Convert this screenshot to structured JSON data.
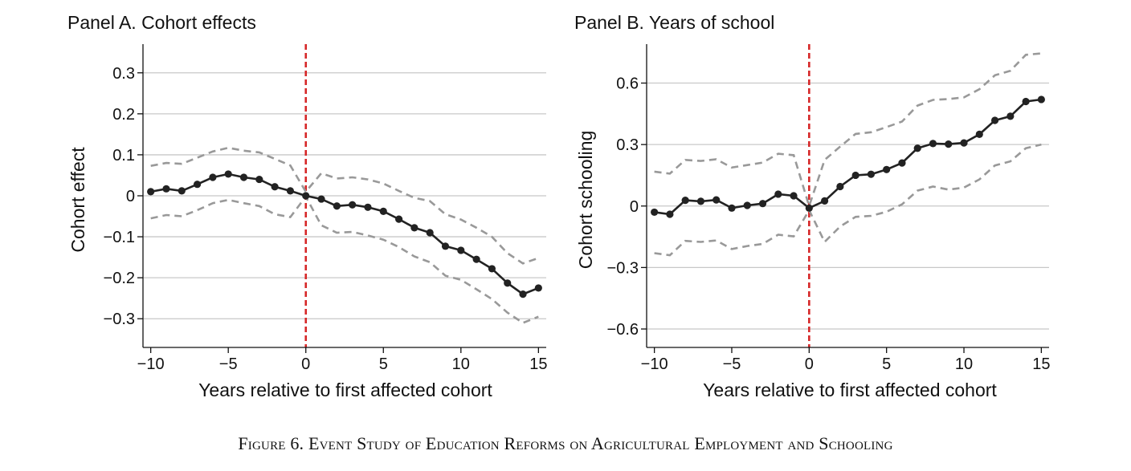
{
  "caption": "Figure 6. Event Study of Education Reforms on Agricultural Employment and Schooling",
  "colors": {
    "estimate": "#222222",
    "ci": "#999999",
    "reference_line": "#d62728",
    "grid": "#c8c8c8"
  },
  "chart_data": [
    {
      "type": "line",
      "title": "Panel A. Cohort effects",
      "xlabel": "Years relative to first affected cohort",
      "ylabel": "Cohort effect",
      "xlim": [
        -10.5,
        15.5
      ],
      "ylim": [
        -0.37,
        0.37
      ],
      "xticks": [
        -10,
        -5,
        0,
        5,
        10,
        15
      ],
      "xtick_labels": [
        "−10",
        "−5",
        "0",
        "5",
        "10",
        "15"
      ],
      "yticks": [
        0.3,
        0.2,
        0.1,
        0,
        -0.1,
        -0.2,
        -0.3
      ],
      "ytick_labels": [
        "0.3",
        "0.2",
        "0.1",
        "0",
        "−0.1",
        "−0.2",
        "−0.3"
      ],
      "grid": "horizontal",
      "reference_x": 0,
      "x": [
        -10,
        -9,
        -8,
        -7,
        -6,
        -5,
        -4,
        -3,
        -2,
        -1,
        0,
        1,
        2,
        3,
        4,
        5,
        6,
        7,
        8,
        9,
        10,
        11,
        12,
        13,
        14,
        15
      ],
      "series": [
        {
          "role": "estimate",
          "values": [
            0.01,
            0.017,
            0.012,
            0.028,
            0.045,
            0.053,
            0.045,
            0.04,
            0.022,
            0.012,
            0,
            -0.008,
            -0.025,
            -0.022,
            -0.028,
            -0.038,
            -0.057,
            -0.078,
            -0.09,
            -0.123,
            -0.133,
            -0.155,
            -0.178,
            -0.213,
            -0.24,
            -0.225
          ]
        },
        {
          "role": "upper_ci",
          "values": [
            0.073,
            0.08,
            0.078,
            0.093,
            0.108,
            0.117,
            0.11,
            0.106,
            0.09,
            0.074,
            0.01,
            0.055,
            0.042,
            0.045,
            0.04,
            0.03,
            0.012,
            -0.005,
            -0.013,
            -0.045,
            -0.058,
            -0.078,
            -0.1,
            -0.14,
            -0.165,
            -0.152
          ]
        },
        {
          "role": "lower_ci",
          "values": [
            -0.055,
            -0.047,
            -0.05,
            -0.035,
            -0.018,
            -0.01,
            -0.018,
            -0.025,
            -0.045,
            -0.052,
            -0.002,
            -0.072,
            -0.09,
            -0.088,
            -0.097,
            -0.107,
            -0.125,
            -0.148,
            -0.162,
            -0.195,
            -0.205,
            -0.228,
            -0.252,
            -0.285,
            -0.31,
            -0.295
          ]
        }
      ]
    },
    {
      "type": "line",
      "title": "Panel B. Years of school",
      "xlabel": "Years relative to first affected cohort",
      "ylabel": "Cohort schooling",
      "xlim": [
        -10.5,
        15.5
      ],
      "ylim": [
        -0.69,
        0.79
      ],
      "xticks": [
        -10,
        -5,
        0,
        5,
        10,
        15
      ],
      "xtick_labels": [
        "−10",
        "−5",
        "0",
        "5",
        "10",
        "15"
      ],
      "yticks": [
        0.6,
        0.3,
        0,
        -0.3,
        -0.6
      ],
      "ytick_labels": [
        "0.6",
        "0.3",
        "0",
        "−0.3",
        "−0.6"
      ],
      "grid": "horizontal",
      "reference_x": 0,
      "x": [
        -10,
        -9,
        -8,
        -7,
        -6,
        -5,
        -4,
        -3,
        -2,
        -1,
        0,
        1,
        2,
        3,
        4,
        5,
        6,
        7,
        8,
        9,
        10,
        11,
        12,
        13,
        14,
        15
      ],
      "series": [
        {
          "role": "estimate",
          "values": [
            -0.03,
            -0.04,
            0.028,
            0.023,
            0.03,
            -0.01,
            0.003,
            0.012,
            0.058,
            0.05,
            -0.01,
            0.025,
            0.095,
            0.15,
            0.155,
            0.178,
            0.21,
            0.282,
            0.305,
            0.302,
            0.308,
            0.35,
            0.418,
            0.438,
            0.51,
            0.52
          ]
        },
        {
          "role": "upper_ci",
          "values": [
            0.168,
            0.158,
            0.225,
            0.22,
            0.228,
            0.188,
            0.2,
            0.212,
            0.255,
            0.248,
            0.0,
            0.225,
            0.29,
            0.352,
            0.36,
            0.385,
            0.412,
            0.49,
            0.518,
            0.522,
            0.53,
            0.57,
            0.638,
            0.66,
            0.738,
            0.745
          ]
        },
        {
          "role": "lower_ci",
          "values": [
            -0.23,
            -0.24,
            -0.17,
            -0.175,
            -0.168,
            -0.21,
            -0.195,
            -0.185,
            -0.14,
            -0.148,
            -0.02,
            -0.175,
            -0.1,
            -0.053,
            -0.048,
            -0.028,
            0.008,
            0.075,
            0.095,
            0.08,
            0.09,
            0.13,
            0.198,
            0.218,
            0.282,
            0.3
          ]
        }
      ]
    }
  ]
}
